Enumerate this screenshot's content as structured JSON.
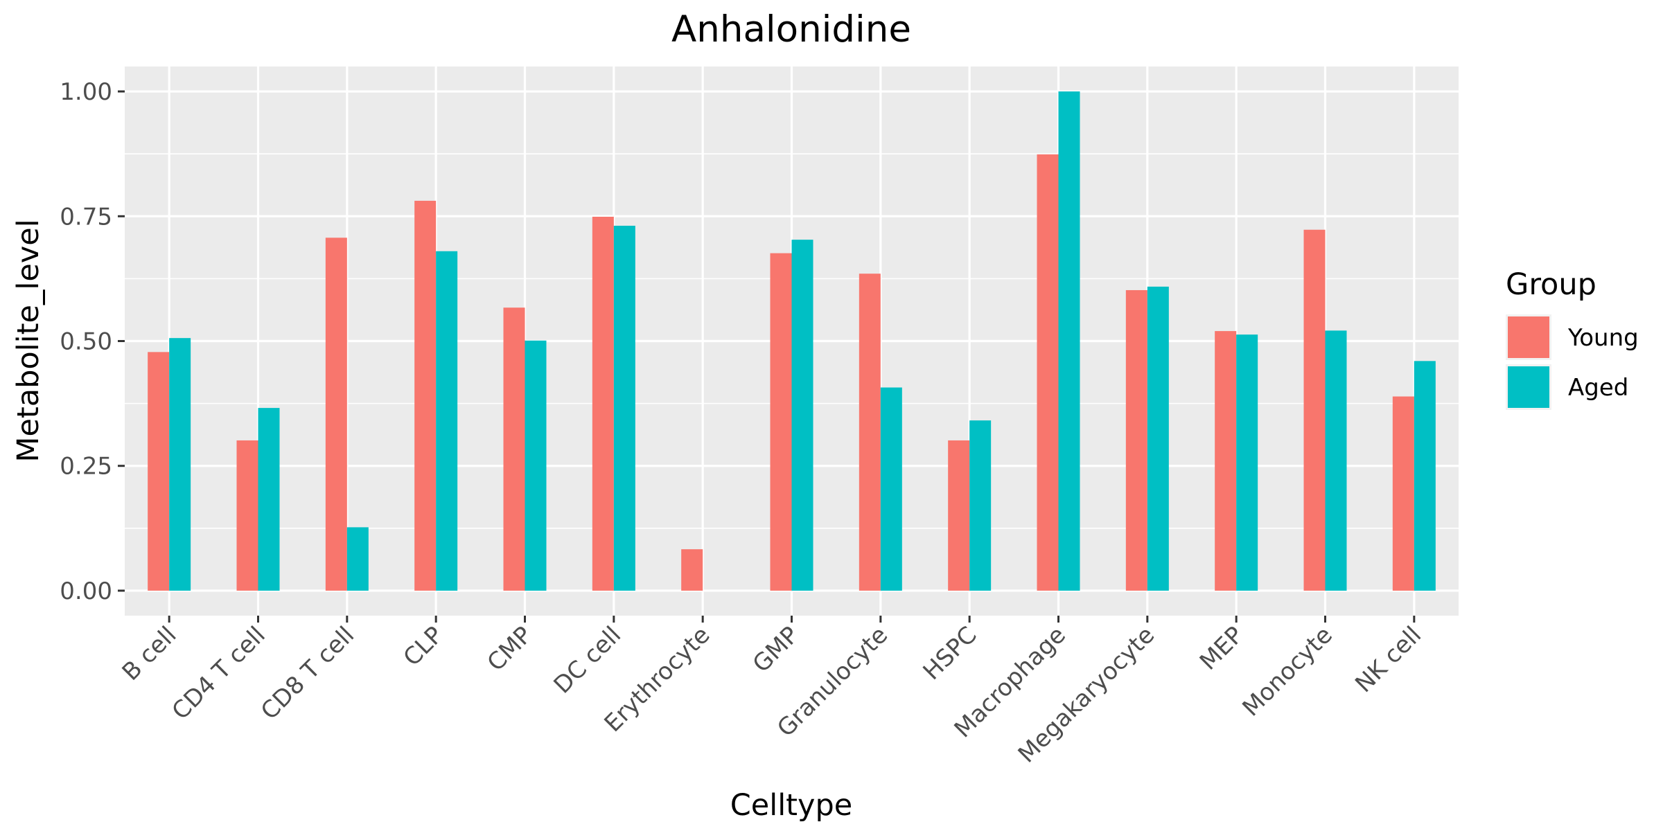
{
  "chart_data": {
    "type": "bar",
    "title": "Anhalonidine",
    "xlabel": "Celltype",
    "ylabel": "Metabolite_level",
    "ylim": [
      -0.05,
      1.05
    ],
    "yticks": [
      "0.00",
      "0.25",
      "0.50",
      "0.75",
      "1.00"
    ],
    "grid": true,
    "legend": {
      "title": "Group",
      "position": "right"
    },
    "categories": [
      "B cell",
      "CD4 T cell",
      "CD8 T cell",
      "CLP",
      "CMP",
      "DC cell",
      "Erythrocyte",
      "GMP",
      "Granulocyte",
      "HSPC",
      "Macrophage",
      "Megakaryocyte",
      "MEP",
      "Monocyte",
      "NK cell"
    ],
    "series": [
      {
        "name": "Young",
        "color": "#F8766D",
        "values": [
          0.478,
          0.301,
          0.707,
          0.781,
          0.567,
          0.749,
          0.083,
          0.676,
          0.635,
          0.301,
          0.874,
          0.602,
          0.52,
          0.723,
          0.389
        ]
      },
      {
        "name": "Aged",
        "color": "#00BFC4",
        "values": [
          0.506,
          0.366,
          0.127,
          0.68,
          0.501,
          0.731,
          0.0,
          0.703,
          0.407,
          0.341,
          1.0,
          0.609,
          0.513,
          0.521,
          0.46
        ]
      }
    ]
  }
}
